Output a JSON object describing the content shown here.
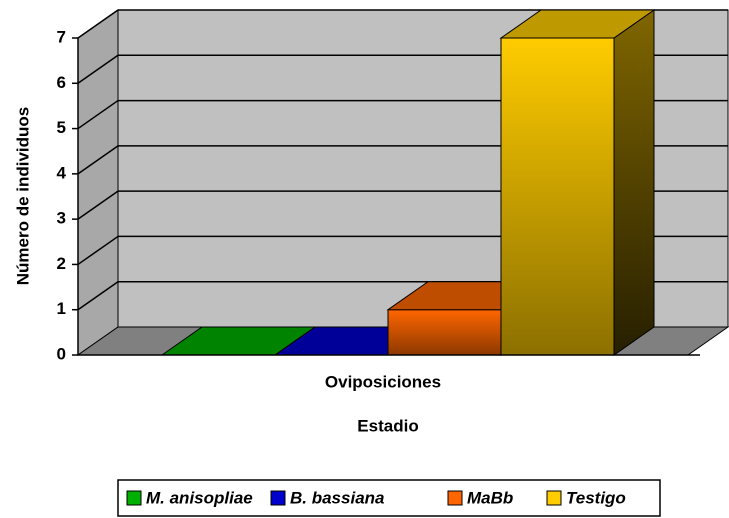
{
  "chart_data": {
    "type": "bar3d",
    "y_label": "Número de individuos",
    "x_label": "Estadio",
    "categories": [
      "Oviposiciones"
    ],
    "series": [
      {
        "name": "M. anisopliae",
        "color": "#00b000",
        "values": [
          0
        ]
      },
      {
        "name": "B. bassiana",
        "color": "#0000cc",
        "values": [
          0
        ]
      },
      {
        "name": "MaBb",
        "color": "#ff6600",
        "values": [
          1
        ]
      },
      {
        "name": "Testigo",
        "color": "#ffcc00",
        "values": [
          7
        ]
      }
    ],
    "ylim": [
      0,
      7
    ],
    "yticks": [
      0,
      1,
      2,
      3,
      4,
      5,
      6,
      7
    ],
    "grid": true,
    "legend": "bottom"
  }
}
